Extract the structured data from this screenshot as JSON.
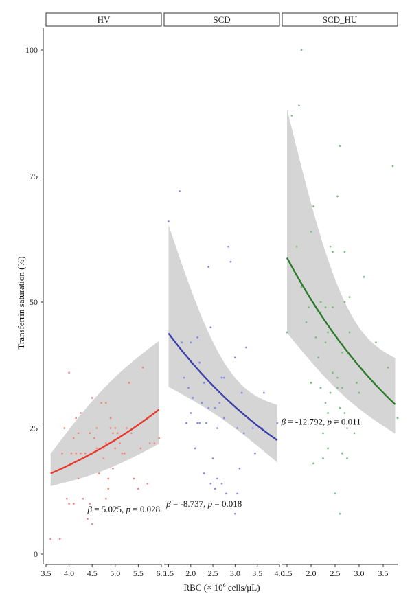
{
  "chart_data": {
    "type": "scatter",
    "ylabel": "Transferrin saturation (%)",
    "xlabel_prefix": "RBC (× 10",
    "xlabel_sup": "6",
    "xlabel_suffix": " cells/μL)",
    "ylim": [
      0,
      100
    ],
    "yticks": [
      0,
      25,
      50,
      75,
      100
    ],
    "grid": false,
    "panels": [
      {
        "name": "HV",
        "color": "#e8392a",
        "point_color": "#f08a80",
        "xlim": [
          3.5,
          6.0
        ],
        "xticks": [
          3.5,
          4.0,
          4.5,
          5.0,
          5.5,
          6.0
        ],
        "xtick_labels": [
          "3.5",
          "4.0",
          "4.5",
          "5.0",
          "5.5",
          "6.0"
        ],
        "annotation": {
          "beta": "β",
          "text": " = 5.025, ",
          "p": "p",
          "ptext": " = 0.028",
          "x": 4.4,
          "y": 8.3
        },
        "fit": {
          "x0": 3.6,
          "x1": 5.95,
          "y0": 16.0,
          "y1": 28.7,
          "lo0": 13.5,
          "hi0": 19.9,
          "lo1": 21.9,
          "hi1": 42.3,
          "bulge_lo": -1.0,
          "bulge_hi": 2.0
        },
        "points": [
          [
            3.6,
            3
          ],
          [
            3.8,
            3
          ],
          [
            3.85,
            20
          ],
          [
            3.9,
            25
          ],
          [
            3.95,
            11
          ],
          [
            4.0,
            10
          ],
          [
            4.0,
            36
          ],
          [
            4.05,
            20
          ],
          [
            4.1,
            10
          ],
          [
            4.1,
            23
          ],
          [
            4.15,
            20
          ],
          [
            4.15,
            27
          ],
          [
            4.2,
            24
          ],
          [
            4.2,
            15
          ],
          [
            4.25,
            28
          ],
          [
            4.25,
            20
          ],
          [
            4.3,
            11
          ],
          [
            4.35,
            20
          ],
          [
            4.4,
            7
          ],
          [
            4.45,
            10
          ],
          [
            4.45,
            24
          ],
          [
            4.5,
            6
          ],
          [
            4.5,
            31
          ],
          [
            4.55,
            23
          ],
          [
            4.6,
            25
          ],
          [
            4.6,
            21
          ],
          [
            4.65,
            16
          ],
          [
            4.7,
            30
          ],
          [
            4.75,
            21
          ],
          [
            4.75,
            19
          ],
          [
            4.8,
            30
          ],
          [
            4.8,
            22
          ],
          [
            4.8,
            11
          ],
          [
            4.85,
            13
          ],
          [
            4.85,
            15
          ],
          [
            4.9,
            27
          ],
          [
            4.9,
            25
          ],
          [
            4.95,
            24
          ],
          [
            4.95,
            17
          ],
          [
            5.0,
            21
          ],
          [
            5.0,
            25
          ],
          [
            5.05,
            24
          ],
          [
            5.1,
            22
          ],
          [
            5.15,
            20
          ],
          [
            5.2,
            20
          ],
          [
            5.25,
            25
          ],
          [
            5.3,
            34
          ],
          [
            5.35,
            24
          ],
          [
            5.4,
            25
          ],
          [
            5.5,
            13
          ],
          [
            5.55,
            21
          ],
          [
            5.6,
            37
          ],
          [
            5.7,
            14
          ],
          [
            5.75,
            22
          ],
          [
            5.85,
            22
          ],
          [
            5.95,
            23
          ],
          [
            5.4,
            15
          ]
        ]
      },
      {
        "name": "SCD",
        "color": "#3b3fa8",
        "point_color": "#8a8cf0",
        "xlim": [
          1.4,
          4.0
        ],
        "xticks": [
          1.5,
          2.0,
          2.5,
          3.0,
          3.5,
          4.0
        ],
        "xtick_labels": [
          "1.5",
          "2.0",
          "2.5",
          "3.0",
          "3.5",
          "4.0"
        ],
        "annotation": {
          "beta": "β",
          "text": " = -8.737, ",
          "p": "p",
          "ptext": " = 0.018",
          "x": 1.45,
          "y": 9.4
        },
        "fit": {
          "x0": 1.5,
          "x1": 3.95,
          "y0": 43.8,
          "y1": 22.6,
          "lo0": 33.2,
          "hi0": 65.3,
          "lo1": 18.2,
          "hi1": 29.6,
          "bulge_lo": 1.0,
          "bulge_hi": -9.0
        },
        "points": [
          [
            1.5,
            66
          ],
          [
            1.75,
            72
          ],
          [
            1.8,
            42
          ],
          [
            1.85,
            35
          ],
          [
            1.9,
            26
          ],
          [
            1.95,
            33
          ],
          [
            2.0,
            28
          ],
          [
            2.0,
            42
          ],
          [
            2.05,
            31
          ],
          [
            2.1,
            21
          ],
          [
            2.15,
            43
          ],
          [
            2.15,
            26
          ],
          [
            2.2,
            38
          ],
          [
            2.25,
            30
          ],
          [
            2.3,
            16
          ],
          [
            2.3,
            34
          ],
          [
            2.35,
            26
          ],
          [
            2.4,
            57
          ],
          [
            2.4,
            29
          ],
          [
            2.45,
            45
          ],
          [
            2.45,
            14
          ],
          [
            2.5,
            19
          ],
          [
            2.55,
            13
          ],
          [
            2.55,
            29
          ],
          [
            2.6,
            25
          ],
          [
            2.65,
            30
          ],
          [
            2.7,
            35
          ],
          [
            2.7,
            14
          ],
          [
            2.75,
            27
          ],
          [
            2.75,
            35
          ],
          [
            2.8,
            12
          ],
          [
            2.85,
            61
          ],
          [
            2.9,
            58
          ],
          [
            2.9,
            30
          ],
          [
            3.0,
            39
          ],
          [
            3.0,
            8
          ],
          [
            3.05,
            12
          ],
          [
            3.05,
            25
          ],
          [
            3.1,
            17
          ],
          [
            3.15,
            32
          ],
          [
            3.2,
            24
          ],
          [
            3.25,
            41
          ],
          [
            3.4,
            25
          ],
          [
            3.45,
            20
          ],
          [
            3.6,
            25
          ],
          [
            3.65,
            32
          ],
          [
            3.95,
            26
          ],
          [
            2.2,
            26
          ],
          [
            2.6,
            15
          ]
        ]
      },
      {
        "name": "SCD_HU",
        "color": "#2d7a2d",
        "point_color": "#7cc07c",
        "xlim": [
          1.4,
          3.8
        ],
        "xticks": [
          1.5,
          2.0,
          2.5,
          3.0,
          3.5
        ],
        "xtick_labels": [
          "1.5",
          "2.0",
          "2.5",
          "3.0",
          "3.5"
        ],
        "annotation": {
          "beta": "β",
          "text": " = -12.792, ",
          "p": "p",
          "ptext": " = 0.011",
          "x": 1.38,
          "y": 25.7
        },
        "fit": {
          "x0": 1.5,
          "x1": 3.75,
          "y0": 58.8,
          "y1": 29.7,
          "lo0": 43.9,
          "hi0": 88.3,
          "lo1": 23.9,
          "hi1": 38.9,
          "bulge_lo": -2.0,
          "bulge_hi": -12.0
        },
        "points": [
          [
            1.5,
            44
          ],
          [
            1.6,
            87
          ],
          [
            1.7,
            61
          ],
          [
            1.75,
            89
          ],
          [
            1.8,
            100
          ],
          [
            1.8,
            53
          ],
          [
            1.9,
            46
          ],
          [
            1.95,
            49
          ],
          [
            2.0,
            34
          ],
          [
            2.0,
            64
          ],
          [
            2.05,
            69
          ],
          [
            2.05,
            18
          ],
          [
            2.1,
            43
          ],
          [
            2.15,
            39
          ],
          [
            2.2,
            33
          ],
          [
            2.2,
            50
          ],
          [
            2.25,
            24
          ],
          [
            2.25,
            19
          ],
          [
            2.3,
            30
          ],
          [
            2.3,
            49
          ],
          [
            2.35,
            44
          ],
          [
            2.35,
            28
          ],
          [
            2.4,
            61
          ],
          [
            2.4,
            32
          ],
          [
            2.45,
            60
          ],
          [
            2.45,
            49
          ],
          [
            2.5,
            12
          ],
          [
            2.5,
            26
          ],
          [
            2.55,
            71
          ],
          [
            2.55,
            35
          ],
          [
            2.6,
            81
          ],
          [
            2.6,
            8
          ],
          [
            2.6,
            29
          ],
          [
            2.65,
            33
          ],
          [
            2.65,
            20
          ],
          [
            2.7,
            60
          ],
          [
            2.7,
            50
          ],
          [
            2.7,
            28
          ],
          [
            2.75,
            25
          ],
          [
            2.75,
            19
          ],
          [
            2.8,
            51
          ],
          [
            2.8,
            44
          ],
          [
            2.9,
            24
          ],
          [
            2.95,
            34
          ],
          [
            3.0,
            32
          ],
          [
            3.1,
            55
          ],
          [
            3.35,
            42
          ],
          [
            3.6,
            37
          ],
          [
            3.7,
            77
          ],
          [
            3.8,
            27
          ],
          [
            2.3,
            42
          ],
          [
            2.45,
            36
          ],
          [
            2.55,
            33
          ],
          [
            2.65,
            40
          ],
          [
            2.2,
            48
          ],
          [
            2.35,
            21
          ]
        ]
      }
    ]
  }
}
